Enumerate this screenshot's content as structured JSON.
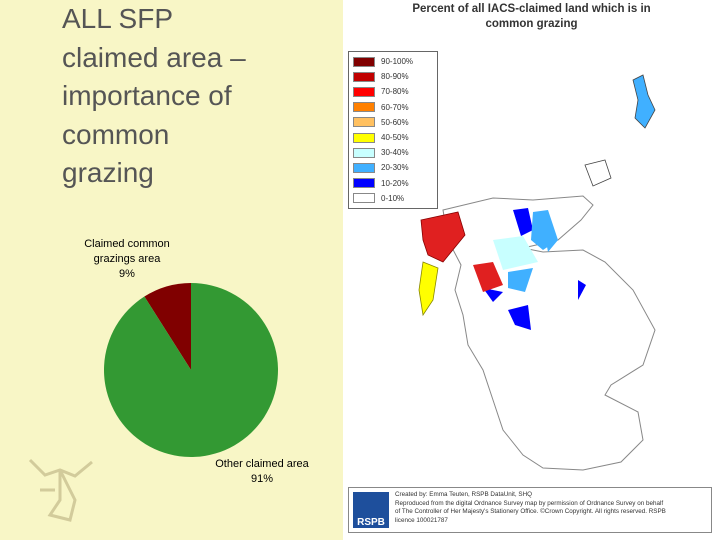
{
  "title_lines": [
    "ALL SFP",
    "claimed area –",
    "importance of",
    "common",
    "grazing"
  ],
  "chart_data": {
    "type": "pie",
    "categories": [
      "Claimed common grazings area",
      "Other claimed area"
    ],
    "values": [
      9,
      91
    ],
    "value_labels": [
      "9%",
      "91%"
    ],
    "colors": [
      "#800000",
      "#339933"
    ]
  },
  "map": {
    "title_lines": [
      "Percent of all IACS-claimed land which is in",
      "common grazing"
    ],
    "legend": [
      {
        "label": "90-100%",
        "color": "#800000"
      },
      {
        "label": "80-90%",
        "color": "#c00000"
      },
      {
        "label": "70-80%",
        "color": "#ff0000"
      },
      {
        "label": "60-70%",
        "color": "#ff8000"
      },
      {
        "label": "50-60%",
        "color": "#ffc060"
      },
      {
        "label": "40-50%",
        "color": "#ffff00"
      },
      {
        "label": "30-40%",
        "color": "#c8ffff"
      },
      {
        "label": "20-30%",
        "color": "#40b0ff"
      },
      {
        "label": "10-20%",
        "color": "#0000ff"
      },
      {
        "label": "0-10%",
        "color": "#ffffff"
      }
    ],
    "logo": "RSPB",
    "credits": [
      "Created by: Emma Teuten, RSPB DataUnit, SHQ",
      "Reproduced from the digital Ordnance Survey map by permission of Ordnance Survey on behalf",
      "of The Controller of Her Majesty's Stationery Office. ©Crown Copyright. All rights reserved. RSPB",
      "licence 100021787"
    ]
  }
}
